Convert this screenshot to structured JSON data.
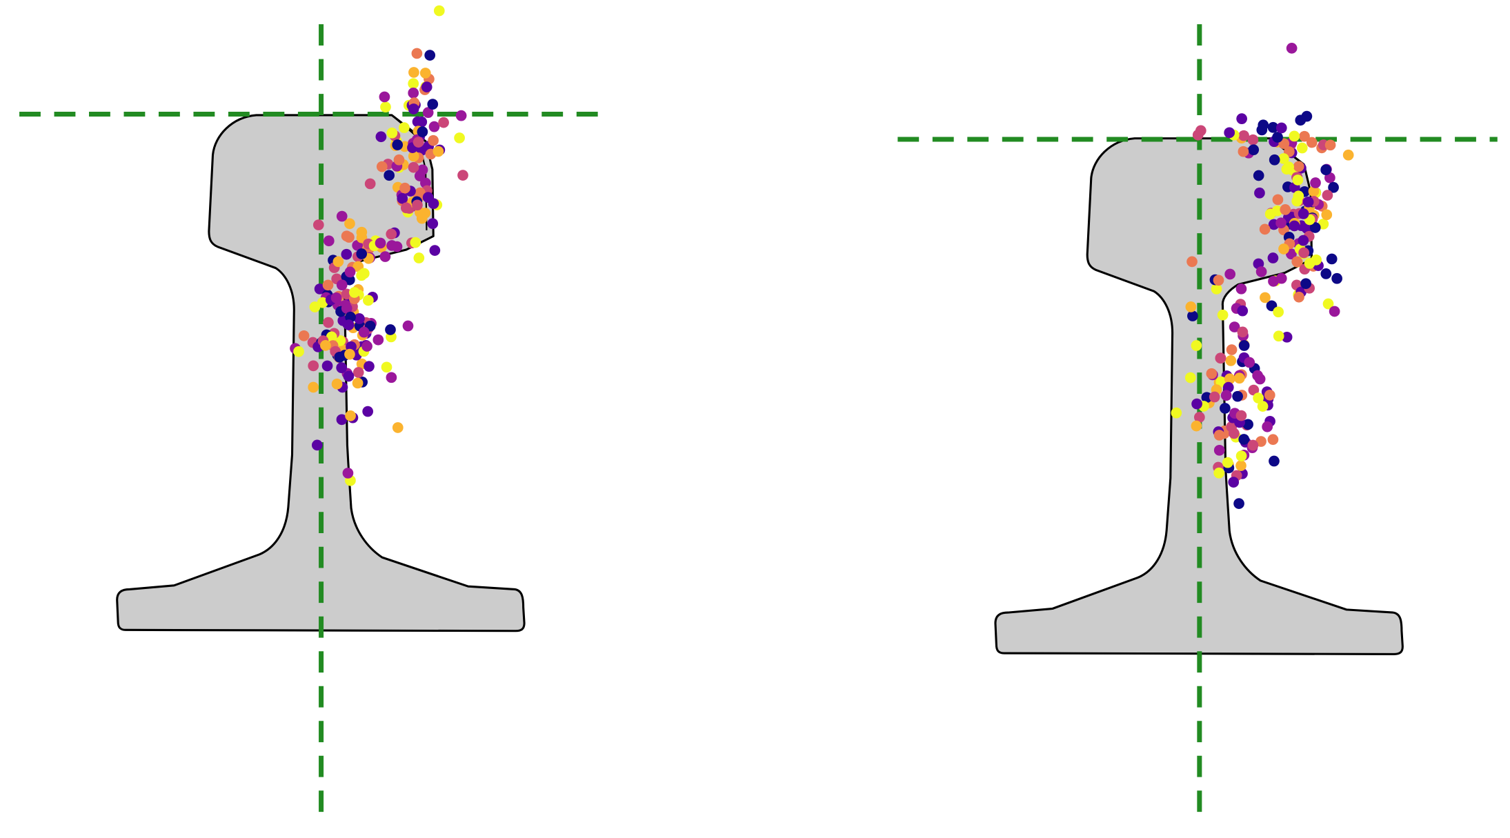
{
  "figure": {
    "panels": [
      {
        "name": "left",
        "rail_fill": "#cccccc",
        "guides": "vertical-and-horizontal"
      },
      {
        "name": "right",
        "rail_fill": "#cccccc",
        "guides": "vertical-and-horizontal"
      }
    ],
    "guide_color": "#228b22",
    "colormap": [
      "#0d0887",
      "#5b02a3",
      "#9a179b",
      "#cb4678",
      "#eb7852",
      "#fbb32f",
      "#f0f921"
    ],
    "point_count_per_panel": 230
  }
}
